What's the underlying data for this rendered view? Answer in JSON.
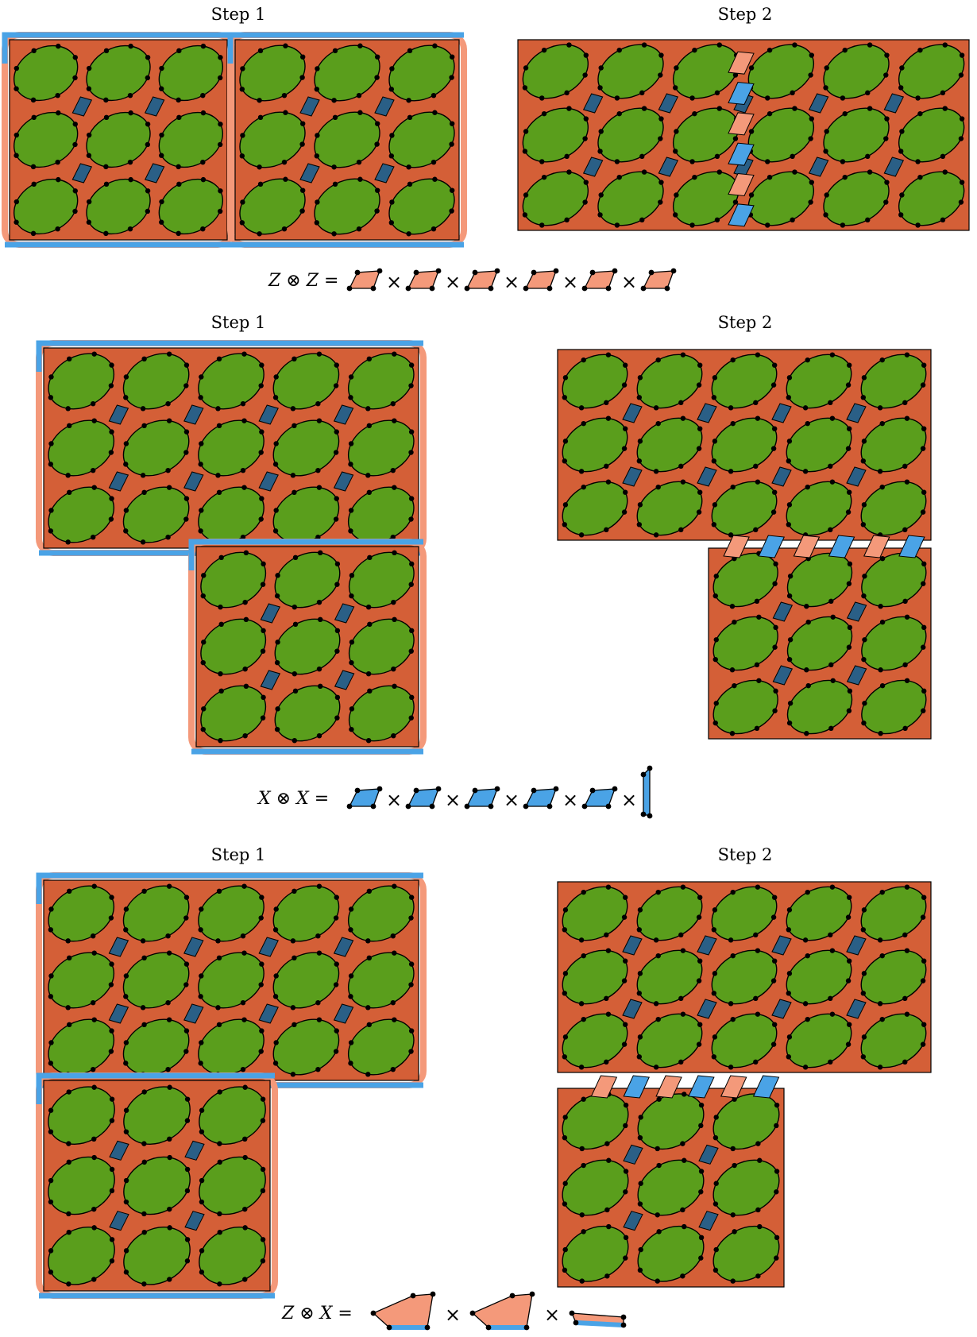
{
  "panels": [
    {
      "id": "zz",
      "step1_label": "Step 1",
      "step2_label": "Step 2",
      "equation_lhs": "Z ⊗ Z =",
      "equation_factor_count": 6
    },
    {
      "id": "xx",
      "step1_label": "Step 1",
      "step2_label": "Step 2",
      "equation_lhs": "X ⊗ X =",
      "equation_factor_count": 6
    },
    {
      "id": "zx",
      "step1_label": "Step 1",
      "step2_label": "Step 2",
      "equation_lhs": "Z ⊗ X =",
      "equation_factor_count": 3
    }
  ],
  "times_symbol": "×",
  "colors": {
    "green": "#5a9e1c",
    "orange": "#d45f37",
    "dark_blue": "#2a5f86",
    "salmon": "#f4997a",
    "light_blue": "#4aa3e6",
    "outline": "#000000"
  }
}
